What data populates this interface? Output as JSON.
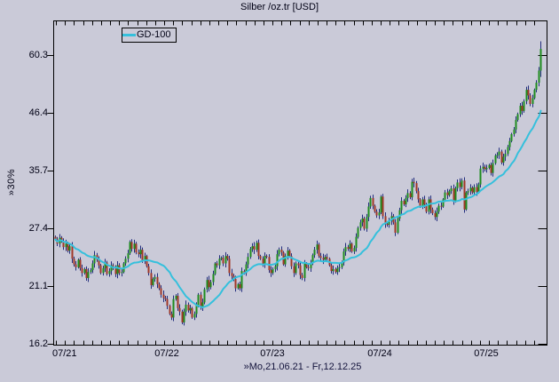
{
  "window": {
    "title": "Silber /oz.tr [USD]"
  },
  "legend": {
    "label": "GD-100"
  },
  "footer": {
    "range_label": "»Mo,21.06.21 - Fr,12.12.25"
  },
  "y_axis": {
    "scale_label": "»30%",
    "ticks": [
      "60.3",
      "46.4",
      "35.7",
      "27.4",
      "21.1",
      "16.2"
    ]
  },
  "x_axis": {
    "ticks": [
      "07/21",
      "07/22",
      "07/23",
      "07/24",
      "07/25"
    ]
  },
  "colors": {
    "background": "#cacad8",
    "frame": "#000000",
    "text": "#000014",
    "footer_text": "#14143c",
    "candle_up": "#1f8c1f",
    "candle_down": "#a03828",
    "wick": "#232e7d",
    "ma_line": "#35c0dc"
  },
  "chart_data": {
    "type": "candlestick",
    "title": "Silber /oz.tr [USD]",
    "frequency": "weekly",
    "x_range_label": "Mo,21.06.21 - Fr,12.12.25",
    "x_tick_labels": [
      "07/21",
      "07/22",
      "07/23",
      "07/24",
      "07/25"
    ],
    "y_scale": "log",
    "y_step_percent": 30,
    "y_ticks": [
      60.3,
      46.4,
      35.7,
      27.4,
      21.1,
      16.2
    ],
    "legend": [
      {
        "name": "GD-100",
        "kind": "moving-average",
        "window_weeks": 20,
        "color": "#35c0dc"
      }
    ],
    "grid": false,
    "first_open": 26.4,
    "final_high": 64.2,
    "final_low": 54.6,
    "closes": [
      26.1,
      25.6,
      26.3,
      25.9,
      25.2,
      25.6,
      24.8,
      25.3,
      23.9,
      23.3,
      23.0,
      23.8,
      22.9,
      22.4,
      22.8,
      21.9,
      22.5,
      22.7,
      23.4,
      24.3,
      23.8,
      23.2,
      22.4,
      22.9,
      23.5,
      22.3,
      22.6,
      23.2,
      22.9,
      22.3,
      23.2,
      22.4,
      22.5,
      23.4,
      23.9,
      24.5,
      25.8,
      25.0,
      25.6,
      24.6,
      24.4,
      24.9,
      23.7,
      24.2,
      23.1,
      22.4,
      21.2,
      21.8,
      22.0,
      21.3,
      20.9,
      20.3,
      20.0,
      19.9,
      19.3,
      18.6,
      18.3,
      19.9,
      20.2,
      19.1,
      18.8,
      17.9,
      18.8,
      19.4,
      18.9,
      19.1,
      18.3,
      18.6,
      19.3,
      20.3,
      19.2,
      19.6,
      20.8,
      21.7,
      21.0,
      21.5,
      22.3,
      23.4,
      23.2,
      23.9,
      24.0,
      23.4,
      24.2,
      23.9,
      22.4,
      22.1,
      21.8,
      20.9,
      21.3,
      20.9,
      22.6,
      22.4,
      23.3,
      24.1,
      25.0,
      25.3,
      24.9,
      25.7,
      24.2,
      23.9,
      23.3,
      24.2,
      24.1,
      22.7,
      22.4,
      22.8,
      23.1,
      24.4,
      24.9,
      24.6,
      23.3,
      24.2,
      24.8,
      24.2,
      23.1,
      22.4,
      23.4,
      23.2,
      22.2,
      21.9,
      23.4,
      23.0,
      22.9,
      23.4,
      24.3,
      24.9,
      25.5,
      24.2,
      24.0,
      23.8,
      24.1,
      23.9,
      23.2,
      22.6,
      22.8,
      22.5,
      22.9,
      23.0,
      23.5,
      24.7,
      25.2,
      25.0,
      25.6,
      24.7,
      25.1,
      26.4,
      27.5,
      28.2,
      28.7,
      27.4,
      28.9,
      30.3,
      31.5,
      30.4,
      29.6,
      29.1,
      29.5,
      31.7,
      29.0,
      28.0,
      27.9,
      28.4,
      29.0,
      28.2,
      26.9,
      28.7,
      29.8,
      31.1,
      30.6,
      31.5,
      32.2,
      31.6,
      33.9,
      33.7,
      32.5,
      31.3,
      30.3,
      31.3,
      30.6,
      29.6,
      31.3,
      29.9,
      29.4,
      28.9,
      29.6,
      30.4,
      30.3,
      31.3,
      32.3,
      31.9,
      32.5,
      32.9,
      31.1,
      32.9,
      33.8,
      33.1,
      34.1,
      29.9,
      32.3,
      32.5,
      33.0,
      32.3,
      33.1,
      32.4,
      33.5,
      36.0,
      36.3,
      35.9,
      36.1,
      36.6,
      35.3,
      36.9,
      38.2,
      38.3,
      38.9,
      37.0,
      38.0,
      38.5,
      39.7,
      40.8,
      42.1,
      43.0,
      44.9,
      46.1,
      47.9,
      46.8,
      48.9,
      51.5,
      50.2,
      48.3,
      49.6,
      51.5,
      53.2,
      56.2,
      62.0
    ]
  }
}
